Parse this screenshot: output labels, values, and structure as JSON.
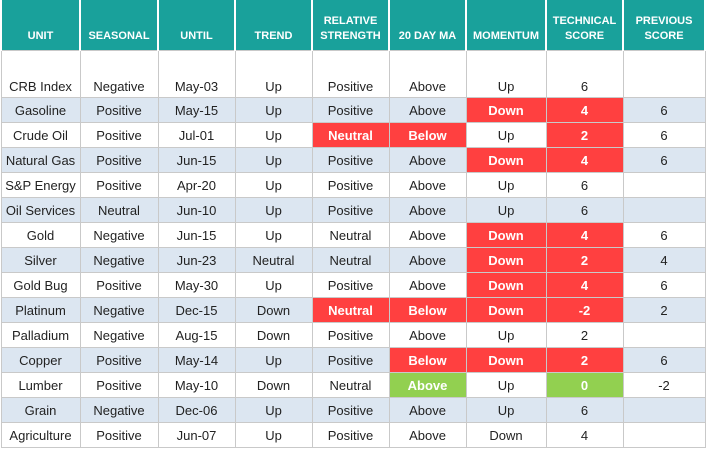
{
  "table": {
    "columns": [
      "UNIT",
      "SEASONAL",
      "UNTIL",
      "TREND",
      "RELATIVE STRENGTH",
      "20 DAY MA",
      "MOMENTUM",
      "TECHNICAL SCORE",
      "PREVIOUS SCORE"
    ],
    "rows": [
      [
        "CRB Index",
        "Negative",
        "May-03",
        "Up",
        "Positive",
        "Above",
        "Up",
        "6",
        null
      ],
      [
        "Gasoline",
        "Positive",
        "May-15",
        "Up",
        "Positive",
        "Above",
        {
          "text": "Down",
          "color": "#ff4040"
        },
        {
          "text": "4",
          "color": "#ff4040"
        },
        "6"
      ],
      [
        "Crude Oil",
        "Positive",
        "Jul-01",
        "Up",
        {
          "text": "Neutral",
          "color": "#ff4040"
        },
        {
          "text": "Below",
          "color": "#ff4040"
        },
        "Up",
        {
          "text": "2",
          "color": "#ff4040"
        },
        "6"
      ],
      [
        "Natural Gas",
        "Positive",
        "Jun-15",
        "Up",
        "Positive",
        "Above",
        {
          "text": "Down",
          "color": "#ff4040"
        },
        {
          "text": "4",
          "color": "#ff4040"
        },
        "6"
      ],
      [
        "S&P Energy",
        "Positive",
        "Apr-20",
        "Up",
        "Positive",
        "Above",
        "Up",
        "6",
        null
      ],
      [
        "Oil Services",
        "Neutral",
        "Jun-10",
        "Up",
        "Positive",
        "Above",
        "Up",
        "6",
        null
      ],
      [
        "Gold",
        "Negative",
        "Jun-15",
        "Up",
        "Neutral",
        "Above",
        {
          "text": "Down",
          "color": "#ff4040"
        },
        {
          "text": "4",
          "color": "#ff4040"
        },
        "6"
      ],
      [
        "Silver",
        "Negative",
        "Jun-23",
        "Neutral",
        "Neutral",
        "Above",
        {
          "text": "Down",
          "color": "#ff4040"
        },
        {
          "text": "2",
          "color": "#ff4040"
        },
        "4"
      ],
      [
        "Gold Bug",
        "Positive",
        "May-30",
        "Up",
        "Positive",
        "Above",
        {
          "text": "Down",
          "color": "#ff4040"
        },
        {
          "text": "4",
          "color": "#ff4040"
        },
        "6"
      ],
      [
        "Platinum",
        "Negative",
        "Dec-15",
        "Down",
        {
          "text": "Neutral",
          "color": "#ff4040"
        },
        {
          "text": "Below",
          "color": "#ff4040"
        },
        {
          "text": "Down",
          "color": "#ff4040"
        },
        {
          "text": "-2",
          "color": "#ff4040"
        },
        "2"
      ],
      [
        "Palladium",
        "Negative",
        "Aug-15",
        "Down",
        "Positive",
        "Above",
        "Up",
        "2",
        null
      ],
      [
        "Copper",
        "Positive",
        "May-14",
        "Up",
        "Positive",
        {
          "text": "Below",
          "color": "#ff4040"
        },
        {
          "text": "Down",
          "color": "#ff4040"
        },
        {
          "text": "2",
          "color": "#ff4040"
        },
        "6"
      ],
      [
        "Lumber",
        "Positive",
        "May-10",
        "Down",
        "Neutral",
        {
          "text": "Above",
          "color": "#92d050"
        },
        "Up",
        {
          "text": "0",
          "color": "#92d050"
        },
        "-2"
      ],
      [
        "Grain",
        "Negative",
        "Dec-06",
        "Up",
        "Positive",
        "Above",
        "Up",
        "6",
        null
      ],
      [
        "Agriculture",
        "Positive",
        "Jun-07",
        "Up",
        "Positive",
        "Above",
        "Down",
        "4",
        null
      ]
    ]
  }
}
